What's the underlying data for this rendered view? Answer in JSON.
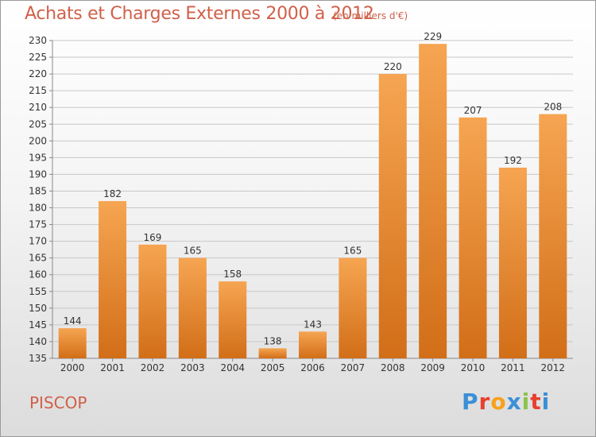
{
  "header": {
    "title": "Achats et Charges Externes 2000 à 2012",
    "subtitle": "(en milliers d'€)"
  },
  "footer": {
    "place": "PISCOP",
    "logo_text": "Proxiti",
    "logo_colors": [
      "#3a8fd8",
      "#e8402e",
      "#f7a11a",
      "#3a8fd8",
      "#8bc34a",
      "#e8402e",
      "#3a8fd8"
    ]
  },
  "colors": {
    "bar_light": "#f6a552",
    "bar_dark": "#d26e18",
    "title": "#d0604a",
    "grid": "#c8c8c8"
  },
  "chart_data": {
    "type": "bar",
    "title": "Achats et Charges Externes 2000 à 2012",
    "subtitle": "(en milliers d'€)",
    "categories": [
      "2000",
      "2001",
      "2002",
      "2003",
      "2004",
      "2005",
      "2006",
      "2007",
      "2008",
      "2009",
      "2010",
      "2011",
      "2012"
    ],
    "values": [
      144,
      182,
      169,
      165,
      158,
      138,
      143,
      165,
      220,
      229,
      207,
      192,
      208
    ],
    "xlabel": "",
    "ylabel": "",
    "ylim": [
      135,
      230
    ],
    "ytick_step": 5,
    "grid": true,
    "data_labels": true
  }
}
